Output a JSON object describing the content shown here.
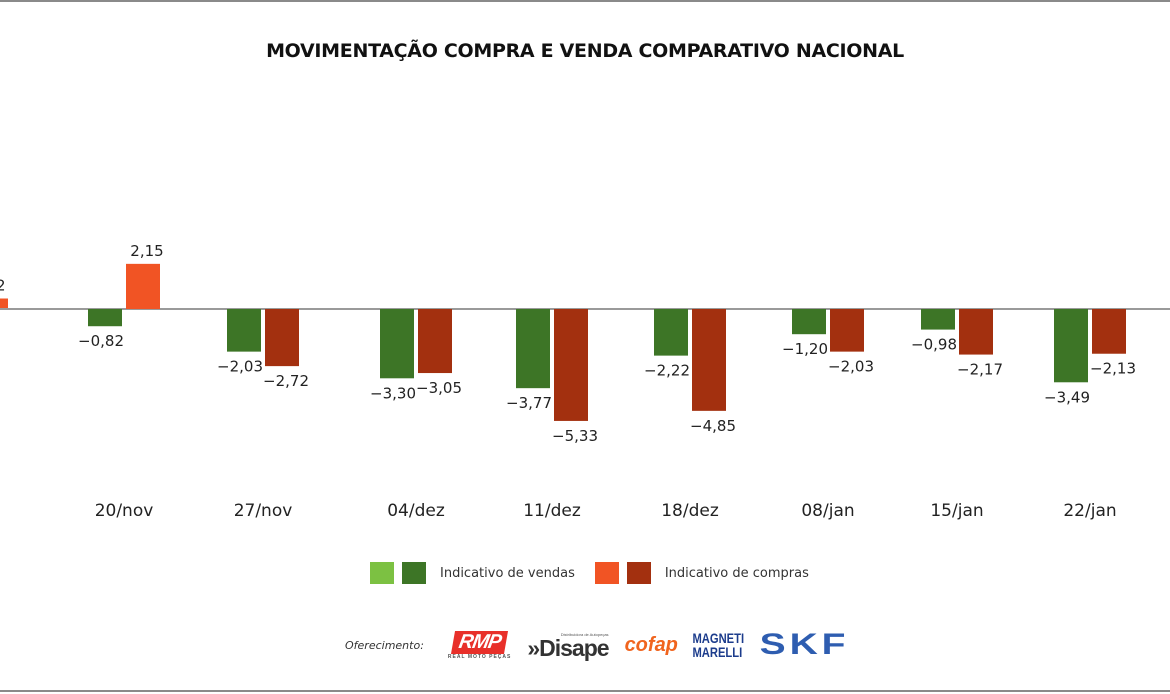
{
  "chart_data": {
    "type": "bar",
    "title": "MOVIMENTAÇÃO COMPRA E VENDA COMPARATIVO NACIONAL",
    "categories": [
      "20/nov",
      "27/nov",
      "04/dez",
      "11/dez",
      "18/dez",
      "08/jan",
      "15/jan",
      "22/jan"
    ],
    "series": [
      {
        "name": "Indicativo de vendas",
        "values": [
          -0.82,
          -2.03,
          -3.3,
          -3.77,
          -2.22,
          -1.2,
          -0.98,
          -3.49
        ],
        "labels": [
          "-0,82",
          "-2,03",
          "-3,30",
          "-3,77",
          "-2,22",
          "-1,20",
          "-0,98",
          "-3,49"
        ]
      },
      {
        "name": "Indicativo de compras",
        "values": [
          2.15,
          -2.72,
          -3.05,
          -5.33,
          -4.85,
          -2.03,
          -2.17,
          -2.13
        ],
        "labels": [
          "2,15",
          "-2,72",
          "-3,05",
          "-5,33",
          "-4,85",
          "-2,03",
          "-2,17",
          "-2,13"
        ]
      }
    ],
    "partial_left_bar": {
      "series": "Indicativo de compras",
      "value": 0.5,
      "visible_label": "2"
    },
    "grid": false,
    "legend_position": "bottom",
    "colors": {
      "vendas_light": "#7cc142",
      "vendas": "#3d7526",
      "compras_light": "#f15424",
      "compras": "#a3300f"
    }
  },
  "legend": {
    "vendas": "Indicativo de vendas",
    "compras": "Indicativo de compras"
  },
  "sponsors": {
    "label": "Oferecimento:",
    "logos": [
      "RMP",
      "REAL MOTO PEÇAS",
      "»Disape",
      "Distribuidora de Autopeças",
      "cofap",
      "MAGNETI",
      "MARELLI",
      "SKF"
    ]
  }
}
